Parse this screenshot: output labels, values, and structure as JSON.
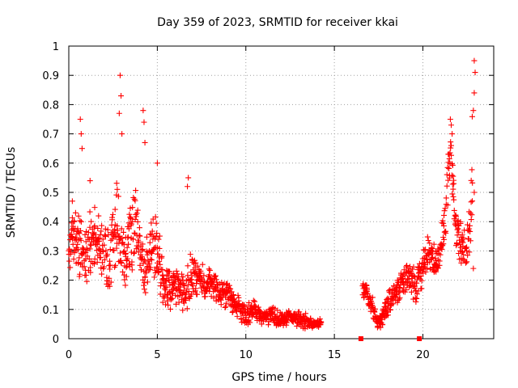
{
  "chart_data": {
    "type": "scatter",
    "title": "Day 359 of 2023, SRMTID for receiver kkai",
    "xlabel": "GPS time / hours",
    "ylabel": "SRMTID / TECUs",
    "xlim": [
      0,
      24
    ],
    "ylim": [
      0,
      1
    ],
    "xticks": [
      0,
      5,
      10,
      15,
      20
    ],
    "yticks": [
      0,
      0.1,
      0.2,
      0.3,
      0.4,
      0.5,
      0.6,
      0.7,
      0.8,
      0.9,
      1
    ],
    "grid": true,
    "marker_color": "#ff0000",
    "series": [
      {
        "name": "SRMTID",
        "marker": "plus",
        "segments": [
          {
            "x": [
              0.0,
              0.25,
              0.5,
              0.75,
              1.0,
              1.25,
              1.5,
              1.75,
              2.0,
              2.25,
              2.5,
              2.75,
              3.0,
              3.25,
              3.5,
              3.75,
              4.0,
              4.25,
              4.5,
              4.75,
              5.0,
              5.25,
              5.5,
              5.75,
              6.0,
              6.25,
              6.5,
              6.75,
              7.0,
              7.25,
              7.5,
              7.75,
              8.0,
              8.25,
              8.5,
              8.75,
              9.0,
              9.25,
              9.5,
              9.75,
              10.0,
              10.25,
              10.5,
              10.75,
              11.0,
              11.25,
              11.5,
              11.75,
              12.0,
              12.25,
              12.5,
              12.75,
              13.0,
              13.25,
              13.5,
              13.75,
              14.0,
              14.25
            ],
            "center": [
              0.3,
              0.36,
              0.34,
              0.3,
              0.28,
              0.33,
              0.36,
              0.32,
              0.3,
              0.27,
              0.33,
              0.38,
              0.32,
              0.29,
              0.36,
              0.4,
              0.31,
              0.22,
              0.27,
              0.33,
              0.31,
              0.2,
              0.18,
              0.16,
              0.19,
              0.18,
              0.15,
              0.2,
              0.22,
              0.21,
              0.2,
              0.19,
              0.2,
              0.17,
              0.16,
              0.15,
              0.17,
              0.13,
              0.11,
              0.09,
              0.08,
              0.09,
              0.1,
              0.08,
              0.07,
              0.07,
              0.08,
              0.07,
              0.06,
              0.07,
              0.08,
              0.07,
              0.07,
              0.06,
              0.06,
              0.05,
              0.05,
              0.05
            ],
            "spread": [
              0.1,
              0.12,
              0.14,
              0.13,
              0.12,
              0.14,
              0.15,
              0.14,
              0.13,
              0.14,
              0.15,
              0.17,
              0.15,
              0.12,
              0.14,
              0.17,
              0.13,
              0.1,
              0.13,
              0.15,
              0.14,
              0.09,
              0.08,
              0.07,
              0.08,
              0.07,
              0.07,
              0.1,
              0.09,
              0.08,
              0.07,
              0.06,
              0.06,
              0.06,
              0.05,
              0.05,
              0.06,
              0.05,
              0.05,
              0.04,
              0.04,
              0.04,
              0.04,
              0.03,
              0.03,
              0.03,
              0.04,
              0.03,
              0.03,
              0.03,
              0.03,
              0.03,
              0.03,
              0.03,
              0.03,
              0.02,
              0.02,
              0.02
            ]
          },
          {
            "x": [
              16.6,
              16.8,
              17.0,
              17.2,
              17.4,
              17.6,
              17.8,
              18.0,
              18.2,
              18.4,
              18.6,
              18.8,
              19.0,
              19.2,
              19.4,
              19.6,
              19.8,
              20.0,
              20.2,
              20.4,
              20.6,
              20.8,
              21.0,
              21.2,
              21.4,
              21.6,
              21.8,
              22.0,
              22.2,
              22.4,
              22.6,
              22.8
            ],
            "center": [
              0.18,
              0.16,
              0.13,
              0.1,
              0.05,
              0.06,
              0.09,
              0.12,
              0.13,
              0.16,
              0.17,
              0.18,
              0.2,
              0.21,
              0.19,
              0.17,
              0.22,
              0.24,
              0.28,
              0.3,
              0.27,
              0.26,
              0.3,
              0.38,
              0.55,
              0.65,
              0.42,
              0.35,
              0.32,
              0.3,
              0.33,
              0.6
            ],
            "spread": [
              0.04,
              0.04,
              0.05,
              0.04,
              0.03,
              0.03,
              0.04,
              0.05,
              0.05,
              0.05,
              0.05,
              0.06,
              0.06,
              0.06,
              0.07,
              0.07,
              0.07,
              0.07,
              0.07,
              0.08,
              0.07,
              0.07,
              0.08,
              0.1,
              0.12,
              0.1,
              0.1,
              0.08,
              0.08,
              0.07,
              0.09,
              0.25
            ]
          }
        ],
        "peaks": [
          {
            "x": 0.2,
            "y": 0.47
          },
          {
            "x": 0.65,
            "y": 0.75
          },
          {
            "x": 0.7,
            "y": 0.7
          },
          {
            "x": 0.75,
            "y": 0.65
          },
          {
            "x": 1.2,
            "y": 0.54
          },
          {
            "x": 2.9,
            "y": 0.9
          },
          {
            "x": 2.95,
            "y": 0.83
          },
          {
            "x": 2.85,
            "y": 0.77
          },
          {
            "x": 3.0,
            "y": 0.7
          },
          {
            "x": 4.2,
            "y": 0.78
          },
          {
            "x": 4.25,
            "y": 0.74
          },
          {
            "x": 4.3,
            "y": 0.67
          },
          {
            "x": 5.0,
            "y": 0.6
          },
          {
            "x": 6.75,
            "y": 0.55
          },
          {
            "x": 6.7,
            "y": 0.52
          },
          {
            "x": 21.55,
            "y": 0.75
          },
          {
            "x": 21.6,
            "y": 0.73
          },
          {
            "x": 21.65,
            "y": 0.7
          },
          {
            "x": 22.9,
            "y": 0.95
          },
          {
            "x": 22.95,
            "y": 0.91
          },
          {
            "x": 22.9,
            "y": 0.84
          },
          {
            "x": 22.85,
            "y": 0.78
          },
          {
            "x": 22.9,
            "y": 0.5
          },
          {
            "x": 22.85,
            "y": 0.24
          }
        ],
        "zero_points": [
          {
            "x": 16.5,
            "y": 0
          },
          {
            "x": 19.8,
            "y": 0
          }
        ]
      }
    ]
  }
}
